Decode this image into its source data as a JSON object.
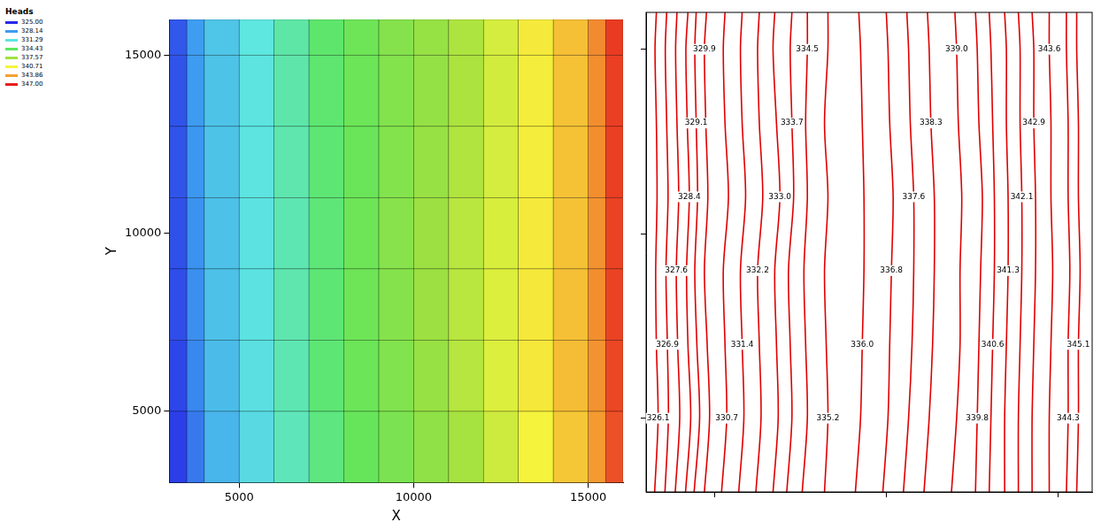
{
  "chart_data": [
    {
      "type": "heatmap",
      "xlabel": "X",
      "ylabel": "Y",
      "xlim": [
        3000,
        16000
      ],
      "ylim": [
        3000,
        16000
      ],
      "xticks": [
        5000,
        10000,
        15000
      ],
      "yticks": [
        5000,
        10000,
        15000
      ],
      "grid": false,
      "cell_x_edges": [
        3000,
        3500,
        4000,
        5000,
        6000,
        7000,
        8000,
        9000,
        10000,
        11000,
        12000,
        13000,
        14000,
        15000,
        15500,
        16000
      ],
      "cell_y_edges": [
        3000,
        5000,
        7000,
        9000,
        11000,
        13000,
        15000,
        16000
      ],
      "heads": [
        [
          325.6,
          327.2,
          329.2,
          330.8,
          332.2,
          333.6,
          334.8,
          335.8,
          336.8,
          337.8,
          339.2,
          340.8,
          342.4,
          344.0,
          345.8
        ],
        [
          325.8,
          327.6,
          329.5,
          331.0,
          332.4,
          333.9,
          335.1,
          336.1,
          337.2,
          338.4,
          339.8,
          341.2,
          342.8,
          344.2,
          346.0
        ],
        [
          326.0,
          327.8,
          329.7,
          331.1,
          332.5,
          333.9,
          335.2,
          336.3,
          337.4,
          338.5,
          339.8,
          341.2,
          342.7,
          344.3,
          346.1
        ],
        [
          326.1,
          327.9,
          329.7,
          331.1,
          332.4,
          333.8,
          335.2,
          336.4,
          337.4,
          338.5,
          339.6,
          341.1,
          342.6,
          344.2,
          346.1
        ],
        [
          326.2,
          328.0,
          329.8,
          331.2,
          332.5,
          333.9,
          335.0,
          336.2,
          337.2,
          338.2,
          339.5,
          341.0,
          342.6,
          344.3,
          346.2
        ],
        [
          326.2,
          328.1,
          329.8,
          331.2,
          332.6,
          334.0,
          335.1,
          336.2,
          337.0,
          338.0,
          339.4,
          341.0,
          342.6,
          344.3,
          346.2
        ],
        [
          326.3,
          328.2,
          329.9,
          331.3,
          332.7,
          334.1,
          335.2,
          336.3,
          337.1,
          338.1,
          339.5,
          341.1,
          342.7,
          344.4,
          346.3
        ]
      ],
      "colorbar": {
        "title": "Heads",
        "range": [
          325,
          347
        ],
        "ticks": [
          {
            "value": 325,
            "label": "325.00"
          },
          {
            "value": 328.14,
            "label": "328.14"
          },
          {
            "value": 331.29,
            "label": "331.29"
          },
          {
            "value": 334.43,
            "label": "334.43"
          },
          {
            "value": 337.57,
            "label": "337.57"
          },
          {
            "value": 340.71,
            "label": "340.71"
          },
          {
            "value": 343.86,
            "label": "343.86"
          },
          {
            "value": 347,
            "label": "347.00"
          }
        ],
        "colors": [
          "#2828e6",
          "#3d9cf0",
          "#5ee6e0",
          "#5ee65e",
          "#a0e040",
          "#f5f53c",
          "#f5a032",
          "#e61e1e"
        ]
      }
    },
    {
      "type": "contour",
      "xlim": [
        3000,
        16000
      ],
      "ylim": [
        3000,
        16000
      ],
      "xticks": [
        5000,
        10000,
        15000
      ],
      "yticks": [
        5000,
        10000,
        15000
      ],
      "tick_labels": false,
      "grid": false,
      "color": "#e00000",
      "contour_y": [
        3000,
        5000,
        7000,
        9000,
        11000,
        13000,
        15000,
        16000
      ],
      "contours": [
        {
          "level": 326.1,
          "label": "326.1",
          "x": [
            3250,
            3350,
            3300,
            3280,
            3320,
            3300,
            3260,
            3300
          ]
        },
        {
          "level": 326.9,
          "label": "326.9",
          "x": [
            3550,
            3650,
            3620,
            3580,
            3640,
            3600,
            3560,
            3600
          ]
        },
        {
          "level": 327.6,
          "label": "327.6",
          "x": [
            3850,
            3980,
            3920,
            3880,
            3950,
            3900,
            3860,
            3900
          ]
        },
        {
          "level": 328.4,
          "label": "328.4",
          "x": [
            4150,
            4300,
            4220,
            4180,
            4260,
            4200,
            4160,
            4220
          ]
        },
        {
          "level": 329.1,
          "label": "329.1",
          "x": [
            4400,
            4560,
            4480,
            4420,
            4500,
            4460,
            4420,
            4460
          ]
        },
        {
          "level": 329.9,
          "label": "329.9",
          "x": [
            4700,
            4850,
            4780,
            4700,
            4800,
            4740,
            4700,
            4760
          ]
        },
        {
          "level": 330.7,
          "label": "330.7",
          "x": [
            5200,
            5350,
            5300,
            5250,
            5400,
            5300,
            5250,
            5300
          ]
        },
        {
          "level": 331.4,
          "label": "331.4",
          "x": [
            5700,
            5850,
            5800,
            5750,
            5900,
            5800,
            5750,
            5800
          ]
        },
        {
          "level": 332.2,
          "label": "332.2",
          "x": [
            6200,
            6350,
            6300,
            6250,
            6400,
            6300,
            6250,
            6300
          ]
        },
        {
          "level": 333.0,
          "label": "333.0",
          "x": [
            6700,
            6850,
            6800,
            6750,
            6900,
            6800,
            6700,
            6750
          ]
        },
        {
          "level": 333.7,
          "label": "333.7",
          "x": [
            7100,
            7250,
            7200,
            7150,
            7300,
            7250,
            7200,
            7250
          ]
        },
        {
          "level": 334.5,
          "label": "334.5",
          "x": [
            7550,
            7700,
            7650,
            7600,
            7700,
            7650,
            7700,
            7700
          ]
        },
        {
          "level": 335.2,
          "label": "335.2",
          "x": [
            8200,
            8300,
            8250,
            8200,
            8300,
            8200,
            8300,
            8300
          ]
        },
        {
          "level": 336.0,
          "label": "336.0",
          "x": [
            9100,
            9250,
            9300,
            9350,
            9350,
            9300,
            9250,
            9200
          ]
        },
        {
          "level": 336.8,
          "label": "336.8",
          "x": [
            9900,
            10050,
            10100,
            10150,
            10200,
            10100,
            10050,
            10000
          ]
        },
        {
          "level": 337.6,
          "label": "337.6",
          "x": [
            10500,
            10650,
            10750,
            10800,
            10800,
            10700,
            10650,
            10600
          ]
        },
        {
          "level": 338.3,
          "label": "338.3",
          "x": [
            11100,
            11250,
            11350,
            11400,
            11400,
            11300,
            11250,
            11200
          ]
        },
        {
          "level": 339.0,
          "label": "339.0",
          "x": [
            11900,
            12050,
            12150,
            12150,
            12200,
            12100,
            12050,
            12000
          ]
        },
        {
          "level": 339.8,
          "label": "339.8",
          "x": [
            12600,
            12650,
            12700,
            12750,
            12800,
            12700,
            12650,
            12600
          ]
        },
        {
          "level": 340.6,
          "label": "340.6",
          "x": [
            13000,
            13050,
            13100,
            13150,
            13150,
            13100,
            13050,
            13000
          ]
        },
        {
          "level": 341.3,
          "label": "341.3",
          "x": [
            13450,
            13450,
            13500,
            13550,
            13550,
            13500,
            13500,
            13450
          ]
        },
        {
          "level": 342.1,
          "label": "342.1",
          "x": [
            13850,
            13850,
            13900,
            13950,
            13950,
            13900,
            13900,
            13850
          ]
        },
        {
          "level": 342.9,
          "label": "342.9",
          "x": [
            14250,
            14250,
            14300,
            14350,
            14350,
            14300,
            14300,
            14250
          ]
        },
        {
          "level": 343.6,
          "label": "343.6",
          "x": [
            14750,
            14750,
            14800,
            14850,
            14800,
            14800,
            14750,
            14750
          ]
        },
        {
          "level": 344.3,
          "label": "344.3",
          "x": [
            15250,
            15300,
            15300,
            15350,
            15300,
            15300,
            15250,
            15250
          ]
        },
        {
          "level": 345.1,
          "label": "345.1",
          "x": [
            15550,
            15600,
            15600,
            15650,
            15600,
            15600,
            15550,
            15550
          ]
        }
      ]
    }
  ]
}
